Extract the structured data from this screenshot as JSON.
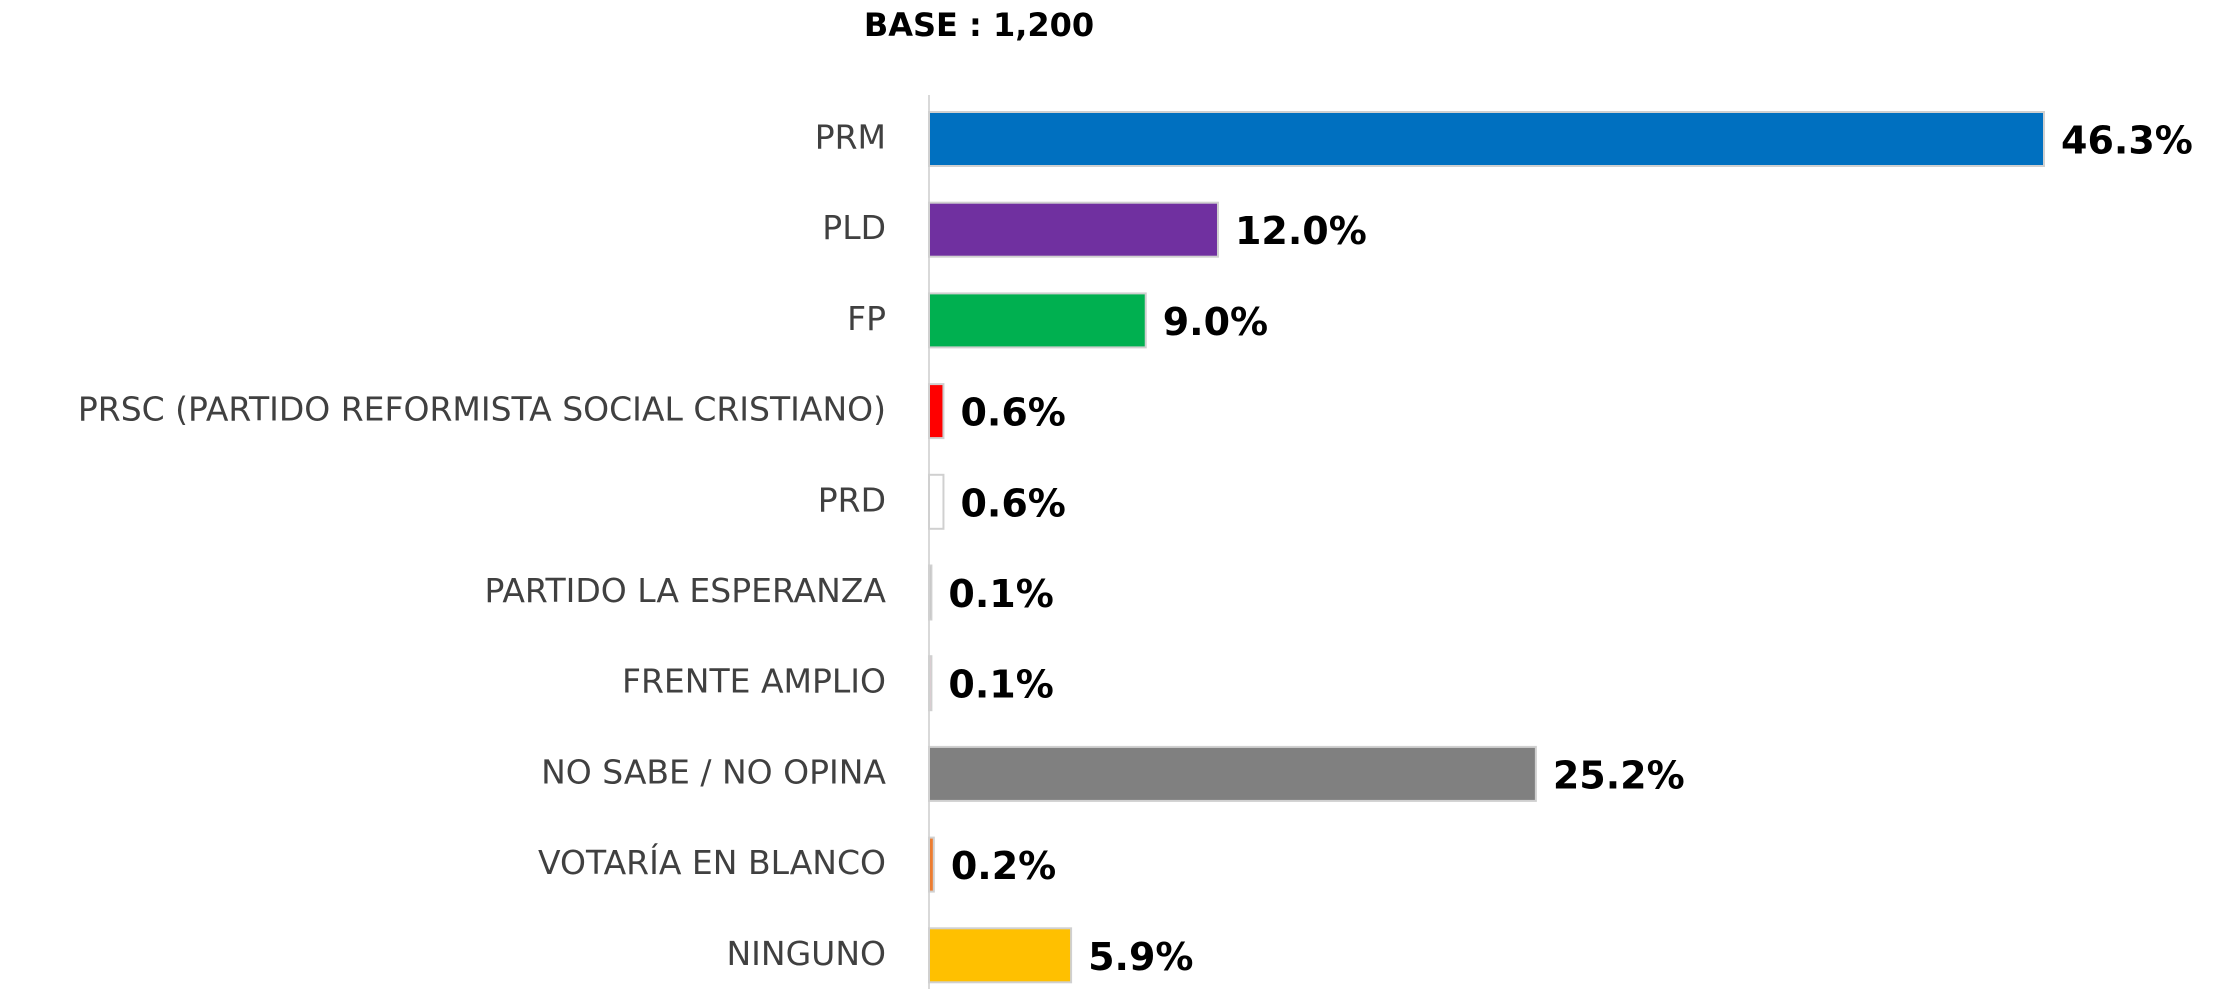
{
  "chart_data": {
    "type": "hbar",
    "title": "BASE : 1,200",
    "categories": [
      "PRM",
      "PLD",
      "FP",
      "PRSC (PARTIDO REFORMISTA SOCIAL CRISTIANO)",
      "PRD",
      "PARTIDO LA ESPERANZA",
      "FRENTE AMPLIO",
      "NO SABE / NO OPINA",
      "VOTARÍA EN BLANCO",
      "NINGUNO"
    ],
    "values": [
      46.3,
      12.0,
      9.0,
      0.6,
      0.6,
      0.1,
      0.1,
      25.2,
      0.2,
      5.9
    ],
    "value_labels": [
      "46.3%",
      "12.0%",
      "9.0%",
      "0.6%",
      "0.6%",
      "0.1%",
      "0.1%",
      "25.2%",
      "0.2%",
      "5.9%"
    ],
    "colors": [
      "#0070c0",
      "#7030a0",
      "#00b050",
      "#ff0000",
      "#ffffff",
      "#bfbfbf",
      "#e6c8d2",
      "#808080",
      "#ed7d31",
      "#ffc000"
    ]
  }
}
